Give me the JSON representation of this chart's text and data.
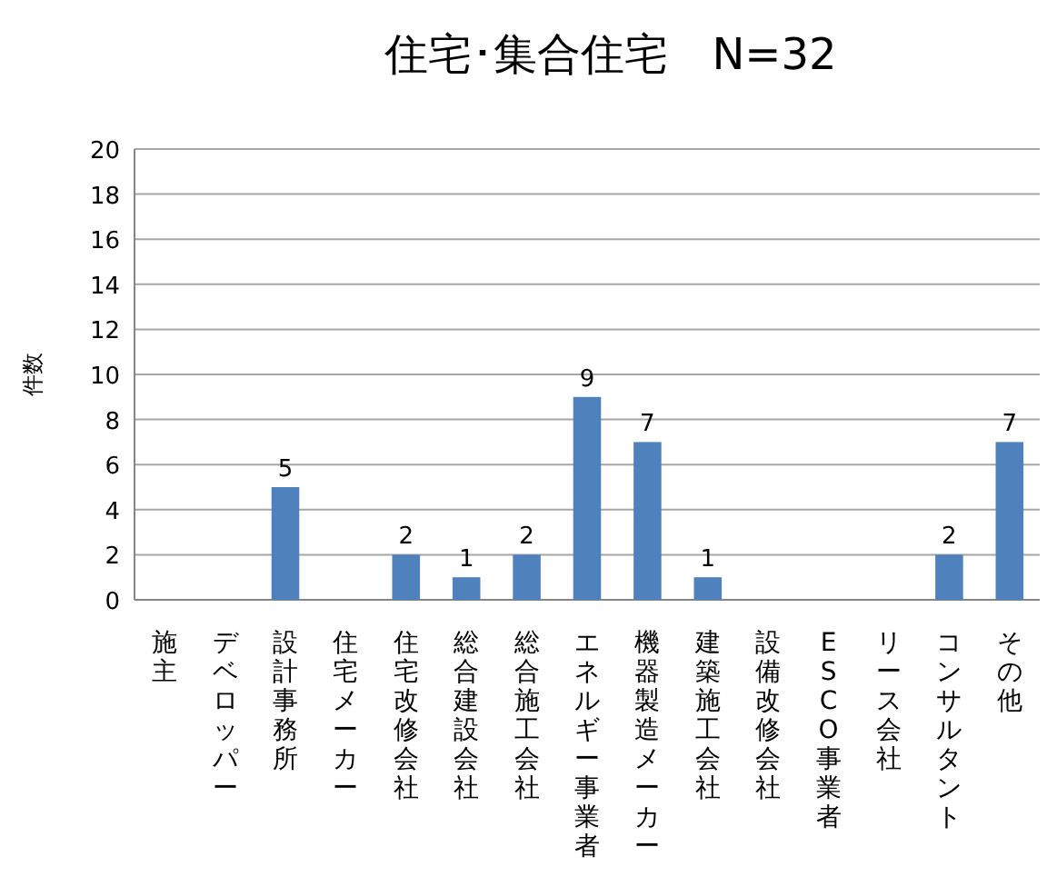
{
  "chart_data": {
    "type": "bar",
    "title": "住宅･集合住宅　N=32",
    "ylabel": "件数",
    "categories": [
      "施主",
      "デベロッパー",
      "設計事務所",
      "住宅メーカー",
      "住宅改修会社",
      "総合建設会社",
      "総合施工会社",
      "エネルギー事業者",
      "機器製造メーカー",
      "建築施工会社",
      "設備改修会社",
      "ESCO事業者",
      "リース会社",
      "コンサルタント",
      "その他"
    ],
    "values": [
      0,
      0,
      5,
      0,
      2,
      1,
      2,
      9,
      7,
      1,
      0,
      0,
      0,
      2,
      7
    ],
    "value_labels": [
      null,
      null,
      "5",
      null,
      "2",
      "1",
      "2",
      "9",
      "7",
      "1",
      null,
      null,
      null,
      "2",
      "7"
    ],
    "color": "#4f81bd",
    "ylim": [
      0,
      20
    ],
    "yticks": [
      0,
      2,
      4,
      6,
      8,
      10,
      12,
      14,
      16,
      18,
      20
    ],
    "grid": "y"
  }
}
